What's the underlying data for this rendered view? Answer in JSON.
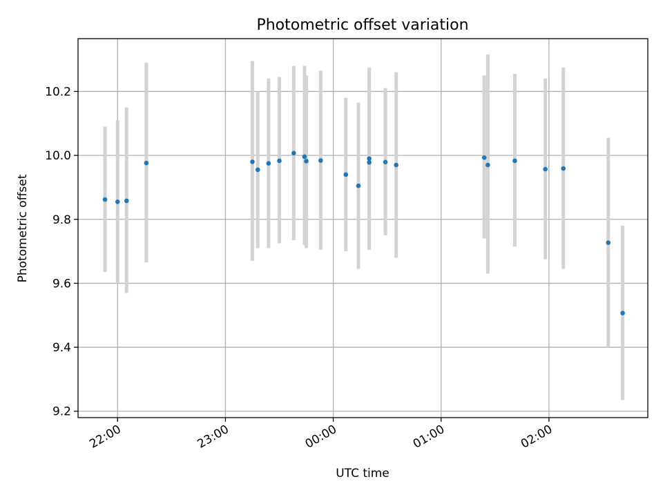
{
  "chart_data": {
    "type": "scatter",
    "title": "Photometric offset variation",
    "xlabel": "UTC time",
    "ylabel": "Photometric offset",
    "x_ticks": [
      "22:00",
      "23:00",
      "00:00",
      "01:00",
      "02:00"
    ],
    "x_range": [
      "21:38",
      "02:55"
    ],
    "y_ticks": [
      "9.2",
      "9.4",
      "9.6",
      "9.8",
      "10.0",
      "10.2"
    ],
    "ylim": [
      9.18,
      10.365
    ],
    "grid": true,
    "series": [
      {
        "points": [
          {
            "x": "21:53",
            "y": 9.862,
            "lo": 9.635,
            "hi": 10.09
          },
          {
            "x": "22:00",
            "y": 9.855,
            "lo": 9.6,
            "hi": 10.11
          },
          {
            "x": "22:05",
            "y": 9.858,
            "lo": 9.57,
            "hi": 10.15
          },
          {
            "x": "22:16",
            "y": 9.976,
            "lo": 9.665,
            "hi": 10.29
          },
          {
            "x": "23:15",
            "y": 9.98,
            "lo": 9.67,
            "hi": 10.295
          },
          {
            "x": "23:18",
            "y": 9.955,
            "lo": 9.71,
            "hi": 10.2
          },
          {
            "x": "23:24",
            "y": 9.975,
            "lo": 9.71,
            "hi": 10.24
          },
          {
            "x": "23:30",
            "y": 9.983,
            "lo": 9.725,
            "hi": 10.245
          },
          {
            "x": "23:38",
            "y": 10.007,
            "lo": 9.735,
            "hi": 10.28
          },
          {
            "x": "23:44",
            "y": 9.996,
            "lo": 9.72,
            "hi": 10.28
          },
          {
            "x": "23:45",
            "y": 9.982,
            "lo": 9.71,
            "hi": 10.25
          },
          {
            "x": "23:53",
            "y": 9.984,
            "lo": 9.705,
            "hi": 10.265
          },
          {
            "x": "00:07",
            "y": 9.94,
            "lo": 9.7,
            "hi": 10.18
          },
          {
            "x": "00:14",
            "y": 9.905,
            "lo": 9.645,
            "hi": 10.165
          },
          {
            "x": "00:20",
            "y": 9.978,
            "lo": 9.705,
            "hi": 10.275
          },
          {
            "x": "00:20",
            "y": 9.99,
            "lo": 9.705,
            "hi": 10.275
          },
          {
            "x": "00:29",
            "y": 9.979,
            "lo": 9.75,
            "hi": 10.21
          },
          {
            "x": "00:35",
            "y": 9.97,
            "lo": 9.68,
            "hi": 10.26
          },
          {
            "x": "01:24",
            "y": 9.993,
            "lo": 9.74,
            "hi": 10.25
          },
          {
            "x": "01:26",
            "y": 9.97,
            "lo": 9.63,
            "hi": 10.315
          },
          {
            "x": "01:41",
            "y": 9.983,
            "lo": 9.715,
            "hi": 10.255
          },
          {
            "x": "01:58",
            "y": 9.957,
            "lo": 9.675,
            "hi": 10.24
          },
          {
            "x": "02:08",
            "y": 9.959,
            "lo": 9.645,
            "hi": 10.275
          },
          {
            "x": "02:33",
            "y": 9.727,
            "lo": 9.4,
            "hi": 10.055
          },
          {
            "x": "02:41",
            "y": 9.507,
            "lo": 9.235,
            "hi": 9.78
          }
        ]
      }
    ],
    "colors": {
      "marker": "#1f77b4",
      "errorbar": "#d3d3d3",
      "grid": "#b0b0b0"
    }
  }
}
